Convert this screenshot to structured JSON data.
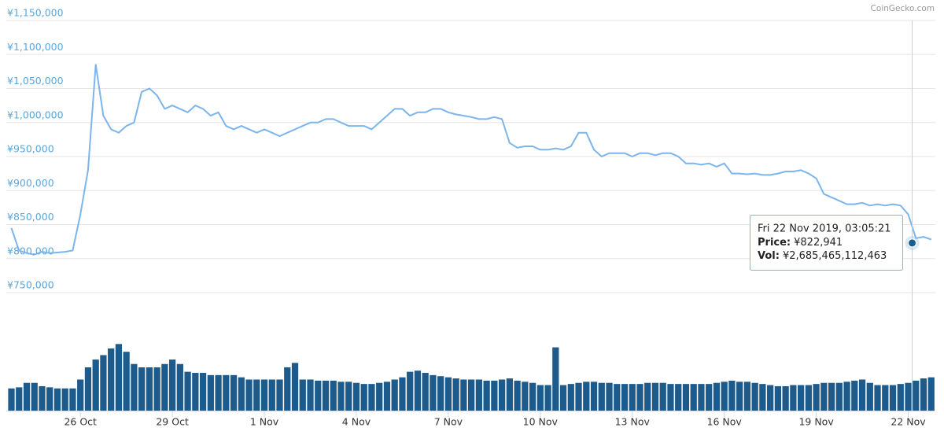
{
  "chart_data": {
    "type": "line",
    "source": "CoinGecko.com",
    "x": [
      "23 Oct 18:00",
      "24 Oct 00:00",
      "24 Oct 06:00",
      "24 Oct 12:00",
      "24 Oct 18:00",
      "25 Oct 00:00",
      "25 Oct 06:00",
      "25 Oct 12:00",
      "25 Oct 18:00",
      "26 Oct 00:00",
      "26 Oct 06:00",
      "26 Oct 12:00",
      "26 Oct 18:00",
      "27 Oct 00:00",
      "27 Oct 06:00",
      "27 Oct 12:00",
      "27 Oct 18:00",
      "28 Oct 00:00",
      "28 Oct 06:00",
      "28 Oct 12:00",
      "28 Oct 18:00",
      "29 Oct 00:00",
      "29 Oct 06:00",
      "29 Oct 12:00",
      "29 Oct 18:00",
      "30 Oct 00:00",
      "30 Oct 06:00",
      "30 Oct 12:00",
      "30 Oct 18:00",
      "31 Oct 00:00",
      "31 Oct 06:00",
      "31 Oct 12:00",
      "31 Oct 18:00",
      "1 Nov 00:00",
      "1 Nov 06:00",
      "1 Nov 12:00",
      "1 Nov 18:00",
      "2 Nov 00:00",
      "2 Nov 06:00",
      "2 Nov 12:00",
      "2 Nov 18:00",
      "3 Nov 00:00",
      "3 Nov 06:00",
      "3 Nov 12:00",
      "3 Nov 18:00",
      "4 Nov 00:00",
      "4 Nov 06:00",
      "4 Nov 12:00",
      "4 Nov 18:00",
      "5 Nov 00:00",
      "5 Nov 06:00",
      "5 Nov 12:00",
      "5 Nov 18:00",
      "6 Nov 00:00",
      "6 Nov 06:00",
      "6 Nov 12:00",
      "6 Nov 18:00",
      "7 Nov 00:00",
      "7 Nov 06:00",
      "7 Nov 12:00",
      "7 Nov 18:00",
      "8 Nov 00:00",
      "8 Nov 06:00",
      "8 Nov 12:00",
      "8 Nov 18:00",
      "9 Nov 00:00",
      "9 Nov 06:00",
      "9 Nov 12:00",
      "9 Nov 18:00",
      "10 Nov 00:00",
      "10 Nov 06:00",
      "10 Nov 12:00",
      "10 Nov 18:00",
      "11 Nov 00:00",
      "11 Nov 06:00",
      "11 Nov 12:00",
      "11 Nov 18:00",
      "12 Nov 00:00",
      "12 Nov 06:00",
      "12 Nov 12:00",
      "12 Nov 18:00",
      "13 Nov 00:00",
      "13 Nov 06:00",
      "13 Nov 12:00",
      "13 Nov 18:00",
      "14 Nov 00:00",
      "14 Nov 06:00",
      "14 Nov 12:00",
      "14 Nov 18:00",
      "15 Nov 00:00",
      "15 Nov 06:00",
      "15 Nov 12:00",
      "15 Nov 18:00",
      "16 Nov 00:00",
      "16 Nov 06:00",
      "16 Nov 12:00",
      "16 Nov 18:00",
      "17 Nov 00:00",
      "17 Nov 06:00",
      "17 Nov 12:00",
      "17 Nov 18:00",
      "18 Nov 00:00",
      "18 Nov 06:00",
      "18 Nov 12:00",
      "18 Nov 18:00",
      "19 Nov 00:00",
      "19 Nov 06:00",
      "19 Nov 12:00",
      "19 Nov 18:00",
      "20 Nov 00:00",
      "20 Nov 06:00",
      "20 Nov 12:00",
      "20 Nov 18:00",
      "21 Nov 00:00",
      "21 Nov 06:00",
      "21 Nov 12:00",
      "21 Nov 18:00",
      "22 Nov 00:00",
      "22 Nov 06:00",
      "22 Nov 12:00",
      "22 Nov 18:00"
    ],
    "series": [
      {
        "type": "line",
        "color": "#7cb5ec",
        "values": [
          845000,
          812000,
          808000,
          806000,
          810000,
          808000,
          809000,
          810000,
          812000,
          865000,
          930000,
          1085000,
          1010000,
          990000,
          985000,
          995000,
          1000000,
          1045000,
          1050000,
          1040000,
          1020000,
          1025000,
          1020000,
          1015000,
          1025000,
          1020000,
          1010000,
          1015000,
          995000,
          990000,
          995000,
          990000,
          985000,
          990000,
          985000,
          980000,
          985000,
          990000,
          995000,
          1000000,
          1000000,
          1005000,
          1005000,
          1000000,
          995000,
          995000,
          995000,
          990000,
          1000000,
          1010000,
          1020000,
          1020000,
          1010000,
          1015000,
          1015000,
          1020000,
          1020000,
          1015000,
          1012000,
          1010000,
          1008000,
          1005000,
          1005000,
          1008000,
          1005000,
          970000,
          963000,
          965000,
          965000,
          960000,
          960000,
          962000,
          960000,
          965000,
          985000,
          985000,
          960000,
          950000,
          955000,
          955000,
          955000,
          950000,
          955000,
          955000,
          952000,
          955000,
          955000,
          950000,
          940000,
          940000,
          938000,
          940000,
          935000,
          940000,
          925000,
          925000,
          924000,
          925000,
          923000,
          923000,
          925000,
          928000,
          928000,
          930000,
          925000,
          918000,
          895000,
          890000,
          885000,
          880000,
          880000,
          882000,
          878000,
          880000,
          878000,
          880000,
          878000,
          865000,
          830000,
          832000,
          828000
        ]
      },
      {
        "type": "bar",
        "axis": "y2",
        "color": "#1d5b8c",
        "values": [
          2000000000000,
          2100000000000,
          2500000000000,
          2500000000000,
          2200000000000,
          2100000000000,
          2000000000000,
          2000000000000,
          2000000000000,
          2800000000000,
          3900000000000,
          4600000000000,
          5000000000000,
          5600000000000,
          6000000000000,
          5300000000000,
          4200000000000,
          3900000000000,
          3900000000000,
          3900000000000,
          4200000000000,
          4600000000000,
          4200000000000,
          3500000000000,
          3400000000000,
          3400000000000,
          3200000000000,
          3200000000000,
          3200000000000,
          3200000000000,
          3000000000000,
          2800000000000,
          2800000000000,
          2800000000000,
          2800000000000,
          2800000000000,
          3900000000000,
          4300000000000,
          2800000000000,
          2800000000000,
          2700000000000,
          2700000000000,
          2700000000000,
          2600000000000,
          2600000000000,
          2500000000000,
          2400000000000,
          2400000000000,
          2500000000000,
          2600000000000,
          2800000000000,
          3000000000000,
          3500000000000,
          3600000000000,
          3400000000000,
          3200000000000,
          3100000000000,
          3000000000000,
          2900000000000,
          2800000000000,
          2800000000000,
          2800000000000,
          2700000000000,
          2700000000000,
          2800000000000,
          2900000000000,
          2700000000000,
          2600000000000,
          2500000000000,
          2300000000000,
          2300000000000,
          5700000000000,
          2300000000000,
          2400000000000,
          2500000000000,
          2600000000000,
          2600000000000,
          2500000000000,
          2500000000000,
          2400000000000,
          2400000000000,
          2400000000000,
          2400000000000,
          2500000000000,
          2500000000000,
          2500000000000,
          2400000000000,
          2400000000000,
          2400000000000,
          2400000000000,
          2400000000000,
          2400000000000,
          2500000000000,
          2600000000000,
          2700000000000,
          2600000000000,
          2600000000000,
          2500000000000,
          2400000000000,
          2300000000000,
          2200000000000,
          2200000000000,
          2300000000000,
          2300000000000,
          2300000000000,
          2400000000000,
          2500000000000,
          2500000000000,
          2500000000000,
          2600000000000,
          2700000000000,
          2800000000000,
          2500000000000,
          2300000000000,
          2300000000000,
          2300000000000,
          2400000000000,
          2500000000000,
          2700000000000,
          2900000000000,
          3000000000000
        ]
      }
    ],
    "xlim": [
      "23 Oct 14:00",
      "22 Nov 20:00"
    ],
    "xticks": [
      "26 Oct",
      "29 Oct",
      "1 Nov",
      "4 Nov",
      "7 Nov",
      "10 Nov",
      "13 Nov",
      "16 Nov",
      "19 Nov",
      "22 Nov"
    ],
    "ylim": [
      750000,
      1150000
    ],
    "yticks": [
      {
        "value": 750000,
        "label": "¥750,000"
      },
      {
        "value": 800000,
        "label": "¥800,000"
      },
      {
        "value": 850000,
        "label": "¥850,000"
      },
      {
        "value": 900000,
        "label": "¥900,000"
      },
      {
        "value": 950000,
        "label": "¥950,000"
      },
      {
        "value": 1000000,
        "label": "¥1,000,000"
      },
      {
        "value": 1050000,
        "label": "¥1,050,000"
      },
      {
        "value": 1100000,
        "label": "¥1,100,000"
      },
      {
        "value": 1150000,
        "label": "¥1,150,000"
      }
    ],
    "y2lim": [
      0,
      9000000000000
    ],
    "grid": true,
    "tooltip": {
      "x": "22 Nov 03:05",
      "title": "Fri 22 Nov 2019, 03:05:21",
      "price_caption": "Price:",
      "price": 822941,
      "price_label": "¥822,941",
      "volume_caption": "Vol:",
      "volume": 2685465112463,
      "volume_label": "¥2,685,465,112,463"
    }
  }
}
